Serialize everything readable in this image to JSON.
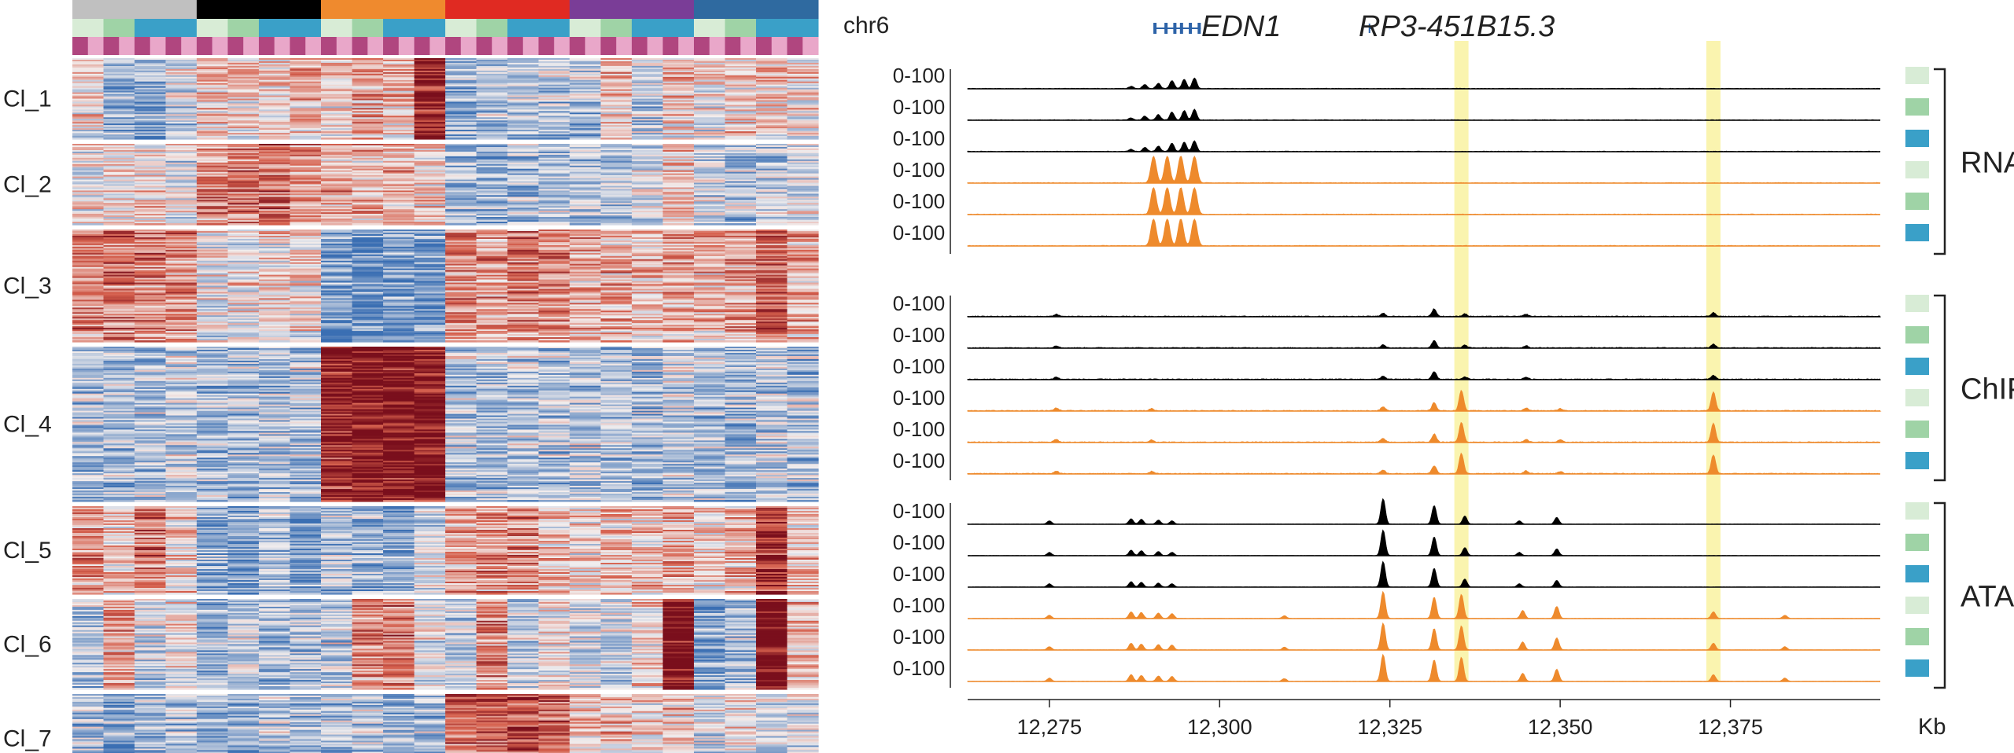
{
  "colors": {
    "low": "#3b6fb3",
    "mid": "#f2eeee",
    "high": "#7a0f1c",
    "rna_ctrl": "#000000",
    "rna_treat": "#ee8a2c",
    "highlight": "#f9f3a6",
    "rep1": "#d8ecd6",
    "rep2": "#9fd3a6",
    "rep3": "#3aa0c8",
    "pink_a": "#e9a7c9",
    "pink_b": "#b0467f"
  },
  "heatmap": {
    "group_colors": [
      "#c0c0c0",
      "#000000",
      "#ef8a2e",
      "#e02a22",
      "#7a3d97",
      "#2f6aa0"
    ],
    "column_count": 24,
    "clusters": [
      {
        "label": "Cl_1",
        "rows": 30,
        "pattern": [
          0.1,
          -0.6,
          -0.8,
          -0.3,
          0.3,
          0.2,
          0.1,
          0.5,
          0.3,
          0.6,
          0.4,
          1.6,
          -0.6,
          -0.5,
          -0.5,
          -0.4,
          -0.5,
          0.3,
          -0.4,
          0.2,
          0.0,
          0.2,
          0.3,
          0.1
        ]
      },
      {
        "label": "Cl_2",
        "rows": 30,
        "pattern": [
          0.0,
          0.1,
          0.2,
          -0.2,
          0.7,
          0.9,
          1.0,
          0.6,
          0.5,
          0.4,
          0.5,
          0.2,
          -0.6,
          -0.7,
          -0.6,
          -0.5,
          -0.5,
          -0.4,
          -0.2,
          0.3,
          -0.3,
          -0.5,
          -0.4,
          -0.2
        ]
      },
      {
        "label": "Cl_3",
        "rows": 45,
        "pattern": [
          0.8,
          0.9,
          0.8,
          0.7,
          -0.1,
          0.0,
          0.1,
          0.1,
          -1.0,
          -1.1,
          -1.0,
          -1.0,
          0.7,
          0.6,
          0.8,
          0.7,
          0.5,
          0.5,
          0.3,
          0.5,
          0.4,
          0.6,
          1.1,
          0.5
        ]
      },
      {
        "label": "Cl_4",
        "rows": 60,
        "pattern": [
          -0.5,
          -0.6,
          -0.5,
          -0.4,
          -0.6,
          -0.6,
          -0.5,
          -0.5,
          1.7,
          1.9,
          1.8,
          1.9,
          -0.4,
          -0.5,
          -0.4,
          -0.5,
          -0.4,
          -0.5,
          -0.6,
          -0.4,
          -0.5,
          -0.6,
          -0.4,
          -0.5
        ]
      },
      {
        "label": "Cl_5",
        "rows": 35,
        "pattern": [
          0.7,
          0.3,
          0.9,
          0.2,
          -0.8,
          -0.9,
          -0.5,
          -1.0,
          -0.4,
          -0.6,
          -0.9,
          -0.3,
          0.5,
          0.6,
          0.8,
          0.4,
          0.2,
          0.4,
          0.3,
          0.5,
          0.2,
          0.4,
          1.5,
          0.3
        ]
      },
      {
        "label": "Cl_6",
        "rows": 35,
        "pattern": [
          -0.5,
          0.6,
          -0.3,
          0.1,
          -0.7,
          -0.4,
          -0.6,
          -0.5,
          -0.3,
          0.7,
          0.9,
          -0.2,
          -0.4,
          0.8,
          -0.3,
          0.0,
          -0.2,
          -0.4,
          0.2,
          2.0,
          -0.7,
          -0.5,
          2.1,
          0.4
        ]
      },
      {
        "label": "Cl_7",
        "rows": 30,
        "pattern": [
          -0.5,
          -0.7,
          -0.6,
          -0.5,
          -0.5,
          -0.6,
          -0.4,
          -0.6,
          -0.5,
          -0.4,
          -0.6,
          -0.5,
          1.1,
          1.2,
          1.3,
          1.0,
          0.3,
          0.4,
          0.2,
          0.3,
          -0.2,
          0.0,
          -0.3,
          -0.2
        ]
      }
    ]
  },
  "tracks": {
    "chrom": "chr6",
    "genes": [
      {
        "name": "EDN1",
        "start": 12290.5,
        "end": 12297.0
      },
      {
        "name": "RP3-451B15.3",
        "start": 12322.0,
        "end": 12322.2
      }
    ],
    "range_label": "0-100",
    "xaxis": {
      "min": 12263,
      "max": 12397,
      "ticks": [
        "12,275",
        "12,300",
        "12,325",
        "12,350",
        "12,375"
      ],
      "tick_values": [
        12275,
        12300,
        12325,
        12350,
        12375
      ],
      "unit": "Kb"
    },
    "highlights": [
      12335.5,
      12372.5
    ],
    "groups": [
      {
        "name": "RNA",
        "peaks_ctrl": [
          [
            12287,
            8
          ],
          [
            12289,
            15
          ],
          [
            12291,
            20
          ],
          [
            12293,
            30
          ],
          [
            12294.8,
            35
          ],
          [
            12296.3,
            40
          ]
        ],
        "peaks_treat": [
          [
            12290.3,
            100
          ],
          [
            12292.3,
            100
          ],
          [
            12294.3,
            100
          ],
          [
            12296.3,
            100
          ]
        ],
        "noise": 2
      },
      {
        "name": "ChIP",
        "peaks_ctrl": [
          [
            12276,
            8
          ],
          [
            12324,
            12
          ],
          [
            12331.5,
            28
          ],
          [
            12336,
            10
          ],
          [
            12345,
            8
          ],
          [
            12372.5,
            14
          ]
        ],
        "peaks_treat": [
          [
            12276,
            10
          ],
          [
            12290,
            8
          ],
          [
            12324,
            14
          ],
          [
            12331.5,
            30
          ],
          [
            12335.5,
            75
          ],
          [
            12345,
            10
          ],
          [
            12350,
            8
          ],
          [
            12372.5,
            70
          ]
        ],
        "noise": 3
      },
      {
        "name": "ATAC",
        "peaks_ctrl": [
          [
            12275,
            12
          ],
          [
            12287,
            20
          ],
          [
            12288.5,
            18
          ],
          [
            12291,
            15
          ],
          [
            12293,
            12
          ],
          [
            12324,
            95
          ],
          [
            12331.5,
            70
          ],
          [
            12336,
            30
          ],
          [
            12344,
            12
          ],
          [
            12349.5,
            25
          ]
        ],
        "peaks_treat": [
          [
            12275,
            12
          ],
          [
            12287,
            25
          ],
          [
            12288.5,
            22
          ],
          [
            12291,
            20
          ],
          [
            12293,
            18
          ],
          [
            12309.5,
            10
          ],
          [
            12324,
            100
          ],
          [
            12331.5,
            80
          ],
          [
            12335.5,
            90
          ],
          [
            12344.5,
            30
          ],
          [
            12349.5,
            45
          ],
          [
            12372.5,
            25
          ],
          [
            12383,
            12
          ]
        ],
        "noise": 1
      }
    ]
  }
}
